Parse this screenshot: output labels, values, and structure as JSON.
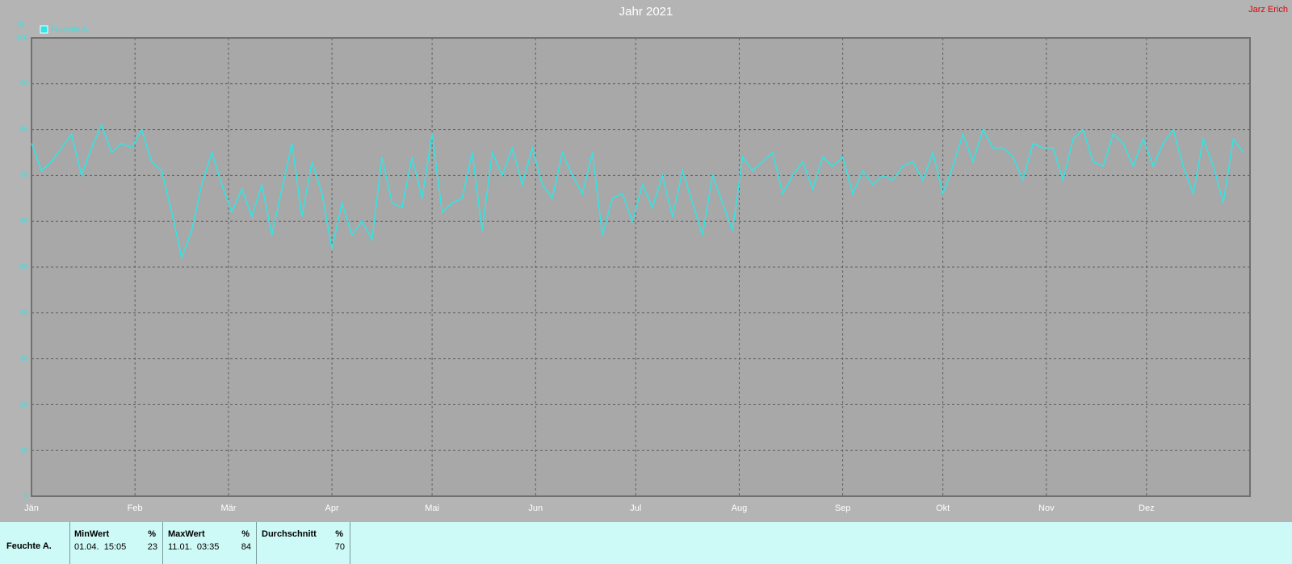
{
  "chart_data": {
    "type": "line",
    "title": "Jahr 2021",
    "annotation": "Jarz Erich",
    "ylabel": "%",
    "x": [
      0,
      3,
      6,
      9,
      12,
      15,
      18,
      21,
      24,
      27,
      30,
      33,
      36,
      39,
      42,
      45,
      48,
      51,
      54,
      57,
      60,
      63,
      66,
      69,
      72,
      75,
      78,
      81,
      84,
      87,
      90,
      93,
      96,
      99,
      102,
      105,
      108,
      111,
      114,
      117,
      120,
      123,
      126,
      129,
      132,
      135,
      138,
      141,
      144,
      147,
      150,
      153,
      156,
      159,
      162,
      165,
      168,
      171,
      174,
      177,
      180,
      183,
      186,
      189,
      192,
      195,
      198,
      201,
      204,
      207,
      210,
      213,
      216,
      219,
      222,
      225,
      228,
      231,
      234,
      237,
      240,
      243,
      246,
      249,
      252,
      255,
      258,
      261,
      264,
      267,
      270,
      273,
      276,
      279,
      282,
      285,
      288,
      291,
      294,
      297,
      300,
      303,
      306,
      309,
      312,
      315,
      318,
      321,
      324,
      327,
      330,
      333,
      336,
      339,
      342,
      345,
      348,
      351,
      354,
      357,
      360,
      363
    ],
    "series": [
      {
        "name": "Feuchte A.",
        "color": "#2ee6e6",
        "values": [
          77,
          71,
          73,
          76,
          79,
          70,
          76,
          81,
          75,
          77,
          76,
          80,
          73,
          71,
          62,
          52,
          58,
          68,
          75,
          68,
          62,
          67,
          61,
          68,
          57,
          67,
          77,
          61,
          73,
          66,
          54,
          64,
          57,
          60,
          56,
          74,
          64,
          63,
          74,
          65,
          79,
          62,
          64,
          65,
          75,
          58,
          75,
          70,
          76,
          68,
          76,
          68,
          65,
          75,
          70,
          66,
          75,
          57,
          65,
          66,
          60,
          68,
          63,
          70,
          61,
          71,
          64,
          57,
          70,
          64,
          58,
          74,
          71,
          73,
          75,
          66,
          70,
          73,
          67,
          74,
          72,
          74,
          66,
          71,
          68,
          70,
          69,
          72,
          73,
          69,
          75,
          66,
          72,
          79,
          73,
          80,
          76,
          76,
          74,
          69,
          77,
          76,
          76,
          69,
          78,
          80,
          73,
          72,
          79,
          77,
          72,
          78,
          72,
          77,
          80,
          72,
          66,
          78,
          72,
          64,
          78,
          75
        ]
      }
    ],
    "xlim": [
      0,
      365
    ],
    "xticks": [
      {
        "value": 0,
        "label": "Jän"
      },
      {
        "value": 31,
        "label": "Feb"
      },
      {
        "value": 59,
        "label": "Mär"
      },
      {
        "value": 90,
        "label": "Apr"
      },
      {
        "value": 120,
        "label": "Mai"
      },
      {
        "value": 151,
        "label": "Jun"
      },
      {
        "value": 181,
        "label": "Jul"
      },
      {
        "value": 212,
        "label": "Aug"
      },
      {
        "value": 243,
        "label": "Sep"
      },
      {
        "value": 273,
        "label": "Okt"
      },
      {
        "value": 304,
        "label": "Nov"
      },
      {
        "value": 334,
        "label": "Dez"
      }
    ],
    "ylim": [
      0,
      100
    ],
    "yticks": [
      0,
      10,
      20,
      30,
      40,
      50,
      60,
      70,
      80,
      90,
      100
    ],
    "grid": true
  },
  "table": {
    "row_label": "Feuchte A.",
    "columns": [
      {
        "header": "MinWert",
        "unit": "%",
        "time": "01.04.  15:05",
        "value": 23
      },
      {
        "header": "MaxWert",
        "unit": "%",
        "time": "11.01.  03:35",
        "value": 84
      },
      {
        "header": "Durchschnitt",
        "unit": "%",
        "value": 70
      }
    ]
  }
}
